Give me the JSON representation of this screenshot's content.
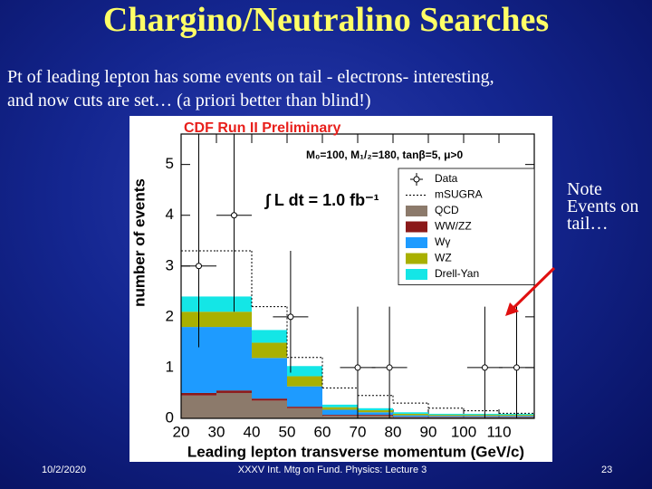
{
  "slide": {
    "title": "Chargino/Neutralino Searches",
    "subtitle": [
      "Pt of leading lepton has some events on tail  - electrons- interesting,",
      "and now cuts are set… (a priori better than blind!)"
    ],
    "note": "Note Events on tail…",
    "footer": {
      "date": "10/2/2020",
      "event": "XXXV Int. Mtg on Fund. Physics: Lecture 3",
      "page": "23"
    }
  },
  "chart_data": {
    "type": "histogram",
    "title": "CDF Run II Preliminary",
    "annotations": [
      "M₀=100, M₁/₂=180, tanβ=5, μ>0",
      "∫ L dt = 1.0 fb⁻¹"
    ],
    "x_label": "Leading lepton transverse momentum (GeV/c)",
    "y_label": "number of events",
    "bins": [
      20,
      30,
      40,
      50,
      60,
      70,
      80,
      90,
      100,
      110,
      120
    ],
    "series": [
      {
        "name": "QCD",
        "color": "#8c7a6b",
        "values": [
          0.45,
          0.5,
          0.35,
          0.2,
          0.05,
          0.05,
          0.02,
          0.02,
          0.02,
          0.02
        ]
      },
      {
        "name": "WW/ZZ",
        "color": "#8b1a1a",
        "values": [
          0.05,
          0.05,
          0.04,
          0.03,
          0.02,
          0.02,
          0.01,
          0.01,
          0.01,
          0.01
        ]
      },
      {
        "name": "Wγ",
        "color": "#1e9bff",
        "values": [
          1.3,
          1.25,
          0.8,
          0.4,
          0.1,
          0.05,
          0.03,
          0.02,
          0.02,
          0.02
        ]
      },
      {
        "name": "WZ",
        "color": "#a9b000",
        "values": [
          0.3,
          0.3,
          0.3,
          0.2,
          0.05,
          0.04,
          0.03,
          0.02,
          0.02,
          0.02
        ]
      },
      {
        "name": "Drell-Yan",
        "color": "#14e6e6",
        "values": [
          0.3,
          0.3,
          0.25,
          0.2,
          0.05,
          0.04,
          0.03,
          0.02,
          0.02,
          0.02
        ]
      }
    ],
    "signal": {
      "name": "mSUGRA",
      "color": "#000000",
      "values": [
        3.3,
        3.3,
        2.2,
        1.2,
        0.6,
        0.45,
        0.3,
        0.2,
        0.15,
        0.1
      ]
    },
    "data": {
      "name": "Data",
      "color": "#000000",
      "x": [
        25,
        35,
        51,
        70,
        79,
        106,
        115
      ],
      "values": [
        3,
        4,
        2,
        1,
        1,
        1,
        1
      ],
      "yerr_low": [
        1.6,
        1.9,
        1.1,
        1,
        1,
        1,
        1
      ],
      "yerr_high": [
        2.6,
        3.2,
        1.3,
        1.2,
        1.2,
        1.2,
        1.2
      ]
    },
    "xlim": [
      20,
      120
    ],
    "ylim": [
      0,
      5.6
    ],
    "xticks": [
      20,
      30,
      40,
      50,
      60,
      70,
      80,
      90,
      100,
      110
    ],
    "yticks": [
      0,
      1,
      2,
      3,
      4,
      5
    ],
    "legend": "upper right"
  }
}
